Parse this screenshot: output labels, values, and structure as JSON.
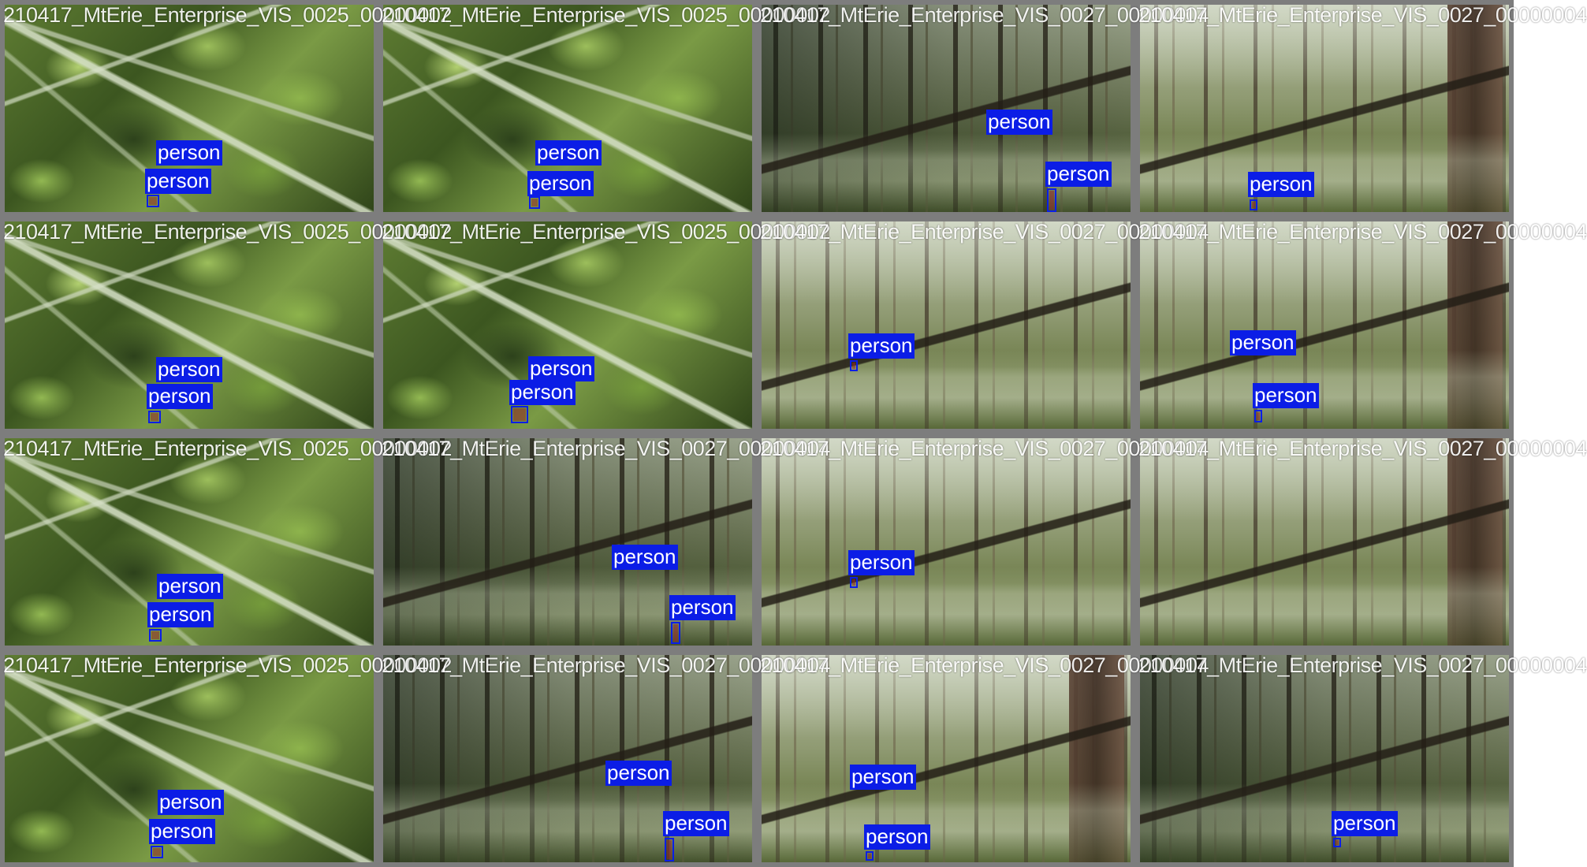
{
  "mosaic": {
    "colors": {
      "label_background": "#0b1de6",
      "label_text": "#ffffff",
      "tile_border": "#7d7d7d",
      "caption_text": "#ffffff"
    },
    "tiles": [
      {
        "caption": "210417_MtErie_Enterprise_VIS_0025_00000002",
        "labels": [
          "person",
          "person"
        ]
      },
      {
        "caption": "210417_MtErie_Enterprise_VIS_0025_00000002",
        "labels": [
          "person",
          "person"
        ]
      },
      {
        "caption": "210417_MtErie_Enterprise_VIS_0027_00000004",
        "labels": [
          "person",
          "person"
        ]
      },
      {
        "caption": "210417_MtErie_Enterprise_VIS_0027_00000004",
        "labels": [
          "person"
        ]
      },
      {
        "caption": "210417_MtErie_Enterprise_VIS_0025_00000002",
        "labels": [
          "person",
          "person"
        ]
      },
      {
        "caption": "210417_MtErie_Enterprise_VIS_0025_00000002",
        "labels": [
          "person",
          "person"
        ]
      },
      {
        "caption": "210417_MtErie_Enterprise_VIS_0027_00000004",
        "labels": [
          "person"
        ]
      },
      {
        "caption": "210417_MtErie_Enterprise_VIS_0027_00000004",
        "labels": [
          "person",
          "person"
        ]
      },
      {
        "caption": "210417_MtErie_Enterprise_VIS_0025_00000002",
        "labels": [
          "person",
          "person"
        ]
      },
      {
        "caption": "210417_MtErie_Enterprise_VIS_0027_00000004",
        "labels": [
          "person",
          "person"
        ]
      },
      {
        "caption": "210417_MtErie_Enterprise_VIS_0027_00000004",
        "labels": [
          "person"
        ]
      },
      {
        "caption": "210417_MtErie_Enterprise_VIS_0027_00000004",
        "labels": []
      },
      {
        "caption": "210417_MtErie_Enterprise_VIS_0025_00000002",
        "labels": [
          "person",
          "person"
        ]
      },
      {
        "caption": "210417_MtErie_Enterprise_VIS_0027_00000004",
        "labels": [
          "person",
          "person"
        ]
      },
      {
        "caption": "210417_MtErie_Enterprise_VIS_0027_00000004",
        "labels": [
          "person",
          "person"
        ]
      },
      {
        "caption": "210417_MtErie_Enterprise_VIS_0027_00000004",
        "labels": [
          "person"
        ]
      }
    ]
  }
}
